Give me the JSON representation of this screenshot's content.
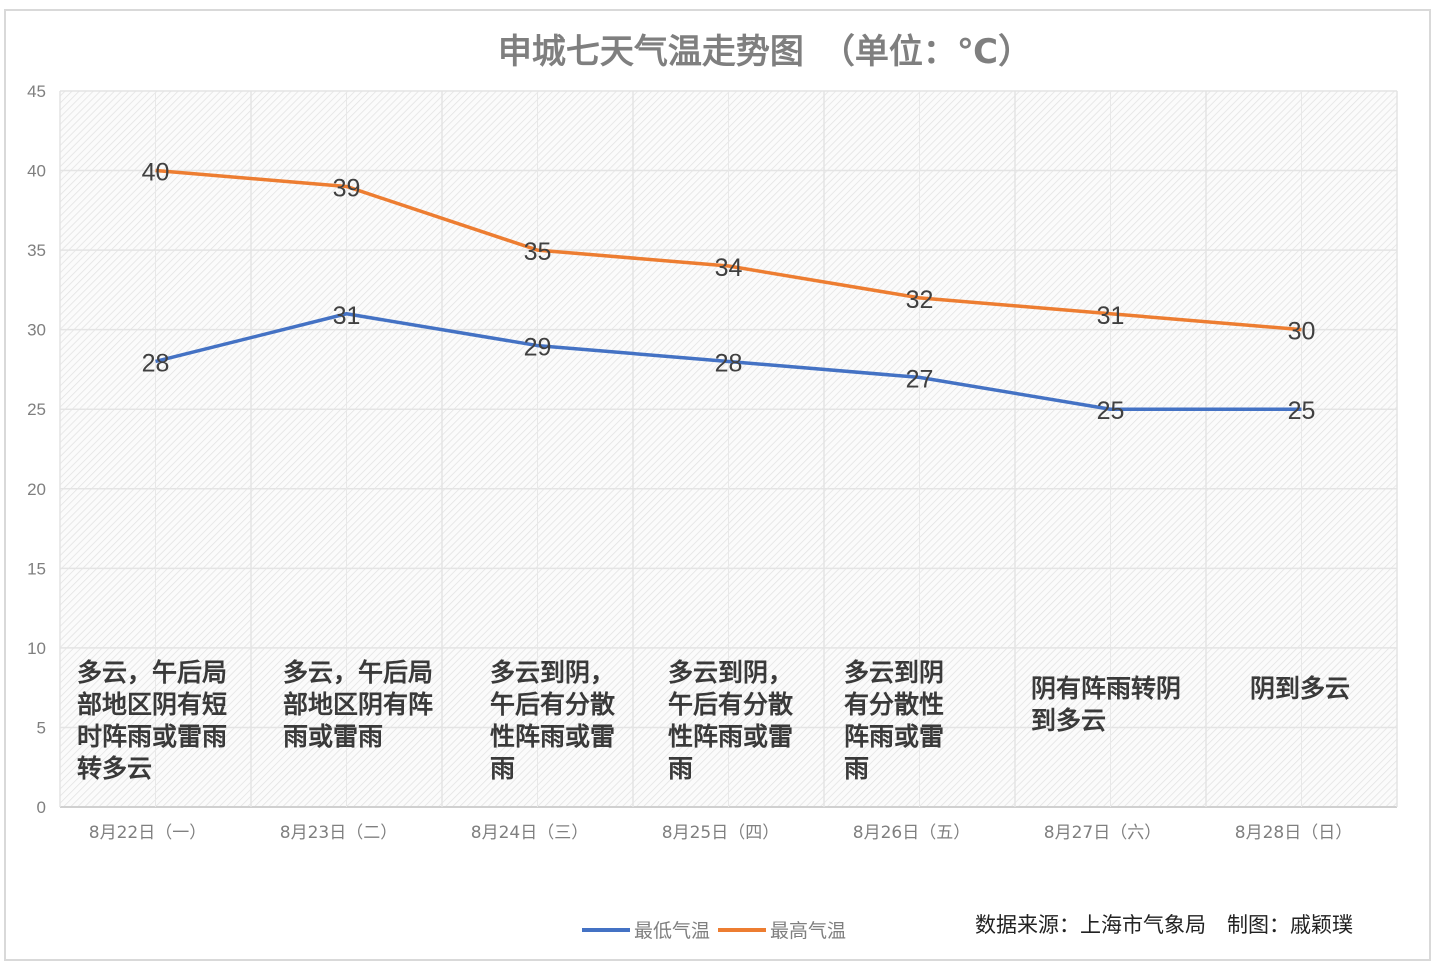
{
  "chart_data": {
    "type": "line",
    "title": "申城七天气温走势图　（单位：℃）",
    "categories": [
      "8月22日（一）",
      "8月23日（二）",
      "8月24日（三）",
      "8月25日（四）",
      "8月26日（五）",
      "8月27日（六）",
      "8月28日（日）"
    ],
    "series": [
      {
        "name": "最低气温",
        "color": "#4472c4",
        "values": [
          28,
          31,
          29,
          28,
          27,
          25,
          25
        ]
      },
      {
        "name": "最高气温",
        "color": "#ed7d31",
        "values": [
          40,
          39,
          35,
          34,
          32,
          31,
          30
        ]
      }
    ],
    "ylim": [
      0,
      45
    ],
    "yticks": [
      0,
      5,
      10,
      15,
      20,
      25,
      30,
      35,
      40,
      45
    ],
    "grid": true,
    "legend": "bottom",
    "data_labels": true,
    "weather": [
      "多云，午后局\n部地区阴有短\n时阵雨或雷雨\n转多云",
      "多云，午后局\n部地区阴有阵\n雨或雷雨",
      "多云到阴，\n午后有分散\n性阵雨或雷\n雨",
      "多云到阴，\n午后有分散\n性阵雨或雷\n雨",
      "多云到阴\n有分散性\n阵雨或雷\n雨",
      "阴有阵雨转阴\n到多云",
      "阴到多云"
    ]
  },
  "footer": {
    "source": "数据来源：上海市气象局　制图：戚颖璞"
  }
}
